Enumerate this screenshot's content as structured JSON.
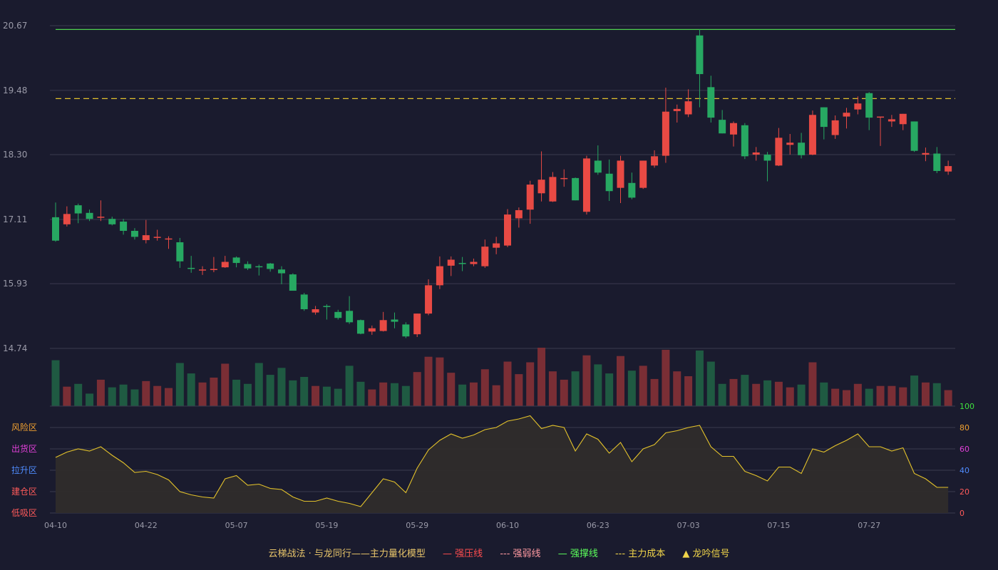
{
  "chart_data": {
    "type": "candlestick",
    "price_axis": {
      "ticks": [
        "20.67",
        "19.48",
        "18.30",
        "17.11",
        "15.93",
        "14.74"
      ],
      "range": [
        14.74,
        20.67
      ]
    },
    "date_ticks": [
      "04-10",
      "04-22",
      "05-07",
      "05-19",
      "05-29",
      "06-10",
      "06-23",
      "07-03",
      "07-15",
      "07-27"
    ],
    "date_tick_index": [
      0,
      8,
      16,
      24,
      32,
      40,
      48,
      56,
      64,
      72
    ],
    "strong_support": 20.6,
    "main_cost": 19.33,
    "candles": [
      [
        17.15,
        16.72,
        17.42,
        16.7
      ],
      [
        17.02,
        17.21,
        17.35,
        16.98
      ],
      [
        17.37,
        17.22,
        17.4,
        17.04
      ],
      [
        17.23,
        17.12,
        17.29,
        17.08
      ],
      [
        17.15,
        17.16,
        17.46,
        17.08
      ],
      [
        17.12,
        17.02,
        17.16,
        17.0
      ],
      [
        17.07,
        16.9,
        17.12,
        16.83
      ],
      [
        16.9,
        16.79,
        16.95,
        16.74
      ],
      [
        16.73,
        16.82,
        17.1,
        16.67
      ],
      [
        16.77,
        16.79,
        16.92,
        16.72
      ],
      [
        16.75,
        16.76,
        16.8,
        16.57
      ],
      [
        16.69,
        16.34,
        16.77,
        16.22
      ],
      [
        16.22,
        16.21,
        16.44,
        16.13
      ],
      [
        16.18,
        16.19,
        16.25,
        16.09
      ],
      [
        16.18,
        16.2,
        16.42,
        16.14
      ],
      [
        16.23,
        16.33,
        16.44,
        16.22
      ],
      [
        16.41,
        16.31,
        16.43,
        16.23
      ],
      [
        16.29,
        16.21,
        16.34,
        16.18
      ],
      [
        16.25,
        16.24,
        16.28,
        16.08
      ],
      [
        16.3,
        16.2,
        16.31,
        16.15
      ],
      [
        16.19,
        16.12,
        16.25,
        15.92
      ],
      [
        16.1,
        15.8,
        16.12,
        15.8
      ],
      [
        15.73,
        15.46,
        15.76,
        15.43
      ],
      [
        15.4,
        15.46,
        15.52,
        15.36
      ],
      [
        15.52,
        15.5,
        15.55,
        15.27
      ],
      [
        15.41,
        15.3,
        15.45,
        15.27
      ],
      [
        15.43,
        15.22,
        15.7,
        15.19
      ],
      [
        15.26,
        15.01,
        15.27,
        15.0
      ],
      [
        15.05,
        15.11,
        15.16,
        14.99
      ],
      [
        15.06,
        15.26,
        15.41,
        15.05
      ],
      [
        15.27,
        15.23,
        15.4,
        15.11
      ],
      [
        15.18,
        14.96,
        15.22,
        14.93
      ],
      [
        15.0,
        15.38,
        15.38,
        14.95
      ],
      [
        15.38,
        15.9,
        16.01,
        15.35
      ],
      [
        15.9,
        16.25,
        16.43,
        15.83
      ],
      [
        16.26,
        16.37,
        16.43,
        16.07
      ],
      [
        16.31,
        16.29,
        16.42,
        16.16
      ],
      [
        16.29,
        16.33,
        16.39,
        16.25
      ],
      [
        16.25,
        16.61,
        16.74,
        16.22
      ],
      [
        16.59,
        16.67,
        16.79,
        16.47
      ],
      [
        16.63,
        17.2,
        17.3,
        16.6
      ],
      [
        17.13,
        17.28,
        17.33,
        16.96
      ],
      [
        17.29,
        17.75,
        17.82,
        17.03
      ],
      [
        17.59,
        17.84,
        18.36,
        17.44
      ],
      [
        17.44,
        17.89,
        17.98,
        17.43
      ],
      [
        17.86,
        17.87,
        18.03,
        17.71
      ],
      [
        17.87,
        17.46,
        17.88,
        17.46
      ],
      [
        17.25,
        18.23,
        18.28,
        17.2
      ],
      [
        18.19,
        17.97,
        18.47,
        17.93
      ],
      [
        17.95,
        17.63,
        18.21,
        17.45
      ],
      [
        17.69,
        18.19,
        18.28,
        17.41
      ],
      [
        17.78,
        17.51,
        17.97,
        17.48
      ],
      [
        17.69,
        18.19,
        18.19,
        17.67
      ],
      [
        18.1,
        18.27,
        18.38,
        18.06
      ],
      [
        18.28,
        19.09,
        19.53,
        18.15
      ],
      [
        19.1,
        19.14,
        19.22,
        18.89
      ],
      [
        19.04,
        19.28,
        19.5,
        18.99
      ],
      [
        20.49,
        19.78,
        20.6,
        19.17
      ],
      [
        19.54,
        18.98,
        19.75,
        18.89
      ],
      [
        18.94,
        18.69,
        19.12,
        18.69
      ],
      [
        18.67,
        18.88,
        18.91,
        18.45
      ],
      [
        18.84,
        18.27,
        18.88,
        18.22
      ],
      [
        18.3,
        18.34,
        18.44,
        18.19
      ],
      [
        18.3,
        18.19,
        18.35,
        17.81
      ],
      [
        18.1,
        18.61,
        18.79,
        18.09
      ],
      [
        18.48,
        18.52,
        18.68,
        18.3
      ],
      [
        18.52,
        18.29,
        18.7,
        18.23
      ],
      [
        18.3,
        19.03,
        19.11,
        18.29
      ],
      [
        19.17,
        18.81,
        19.17,
        18.58
      ],
      [
        18.66,
        18.93,
        19.02,
        18.59
      ],
      [
        19.0,
        19.07,
        19.16,
        18.78
      ],
      [
        19.13,
        19.24,
        19.37,
        19.04
      ],
      [
        19.43,
        18.98,
        19.45,
        18.75
      ],
      [
        18.98,
        19.0,
        19.0,
        18.46
      ],
      [
        18.91,
        18.95,
        19.03,
        18.81
      ],
      [
        18.86,
        19.05,
        19.05,
        18.75
      ],
      [
        18.91,
        18.37,
        18.91,
        18.35
      ],
      [
        18.3,
        18.33,
        18.43,
        18.18
      ],
      [
        18.32,
        18.0,
        18.44,
        17.96
      ],
      [
        17.99,
        18.09,
        18.19,
        17.93
      ]
    ],
    "volume": [
      66,
      28,
      32,
      18,
      38,
      27,
      31,
      24,
      36,
      29,
      26,
      62,
      47,
      34,
      41,
      61,
      38,
      32,
      62,
      45,
      55,
      37,
      42,
      29,
      28,
      25,
      58,
      35,
      24,
      34,
      33,
      29,
      49,
      71,
      70,
      48,
      31,
      34,
      53,
      30,
      64,
      46,
      63,
      84,
      50,
      38,
      50,
      73,
      60,
      47,
      72,
      51,
      58,
      39,
      81,
      50,
      43,
      80,
      64,
      32,
      39,
      45,
      32,
      37,
      35,
      27,
      31,
      63,
      34,
      25,
      23,
      32,
      25,
      29,
      29,
      27,
      44,
      34,
      33,
      23
    ],
    "oscillator": {
      "scale_ticks": [
        "100",
        "80",
        "60",
        "40",
        "20",
        "0"
      ],
      "zone_labels": [
        "风险区",
        "出货区",
        "拉升区",
        "建仓区",
        "低吸区"
      ],
      "values": [
        52,
        57,
        60,
        58,
        62,
        54,
        47,
        38,
        39,
        36,
        31,
        20,
        17,
        15,
        14,
        32,
        35,
        26,
        27,
        23,
        22,
        15,
        11,
        11,
        14,
        11,
        9,
        6,
        19,
        32,
        29,
        19,
        42,
        59,
        68,
        74,
        70,
        73,
        78,
        80,
        86,
        88,
        91,
        79,
        82,
        80,
        58,
        74,
        69,
        56,
        66,
        48,
        60,
        64,
        75,
        77,
        80,
        82,
        62,
        53,
        53,
        39,
        35,
        30,
        43,
        43,
        37,
        60,
        57,
        63,
        68,
        74,
        62,
        62,
        58,
        61,
        37,
        32,
        24,
        24
      ]
    }
  },
  "legend": {
    "title": "云梯战法 · 与龙同行——主力量化模型",
    "items": [
      {
        "symbol": "—",
        "label": "强压线"
      },
      {
        "symbol": "---",
        "label": "强弱线"
      },
      {
        "symbol": "—",
        "label": "强撑线"
      },
      {
        "symbol": "---",
        "label": "主力成本"
      },
      {
        "symbol": "▲",
        "label": "龙吟信号"
      }
    ]
  },
  "colors": {
    "background": "#1a1b2e",
    "up": "#e84a44",
    "down": "#27a862",
    "volume_up": "#7a2e35",
    "volume_down": "#1f5a42",
    "grid": "#3a3b4e",
    "axis_text": "#9a9aa8",
    "support_line": "#4fd14f",
    "cost_line": "#e3c22b",
    "oscillator_line": "#e3c22b",
    "oscillator_fill": "#2f2c2b",
    "scale_green": "#3fe03f",
    "scale_orange": "#f0a030",
    "scale_magenta": "#e040d8",
    "scale_blue": "#4f8cff",
    "scale_red": "#ff5a5a"
  }
}
